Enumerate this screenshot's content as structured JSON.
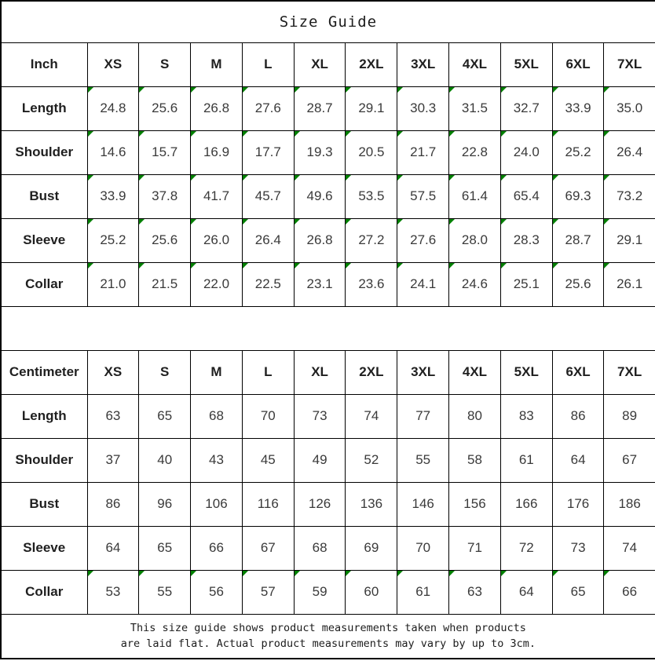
{
  "title": "Size Guide",
  "colors": {
    "flag_green": "#008000",
    "grid_line": "#000000"
  },
  "icons": {
    "cell_corner_flag": "green-triangle-top-left"
  },
  "tables": [
    {
      "unit": "Inch",
      "sizes": [
        "XS",
        "S",
        "M",
        "L",
        "XL",
        "2XL",
        "3XL",
        "4XL",
        "5XL",
        "6XL",
        "7XL"
      ],
      "rows": [
        {
          "label": "Length",
          "marks": true,
          "values": [
            "24.8",
            "25.6",
            "26.8",
            "27.6",
            "28.7",
            "29.1",
            "30.3",
            "31.5",
            "32.7",
            "33.9",
            "35.0"
          ]
        },
        {
          "label": "Shoulder",
          "marks": true,
          "values": [
            "14.6",
            "15.7",
            "16.9",
            "17.7",
            "19.3",
            "20.5",
            "21.7",
            "22.8",
            "24.0",
            "25.2",
            "26.4"
          ]
        },
        {
          "label": "Bust",
          "marks": true,
          "values": [
            "33.9",
            "37.8",
            "41.7",
            "45.7",
            "49.6",
            "53.5",
            "57.5",
            "61.4",
            "65.4",
            "69.3",
            "73.2"
          ]
        },
        {
          "label": "Sleeve",
          "marks": true,
          "values": [
            "25.2",
            "25.6",
            "26.0",
            "26.4",
            "26.8",
            "27.2",
            "27.6",
            "28.0",
            "28.3",
            "28.7",
            "29.1"
          ]
        },
        {
          "label": "Collar",
          "marks": true,
          "values": [
            "21.0",
            "21.5",
            "22.0",
            "22.5",
            "23.1",
            "23.6",
            "24.1",
            "24.6",
            "25.1",
            "25.6",
            "26.1"
          ]
        }
      ]
    },
    {
      "unit": "Centimeter",
      "sizes": [
        "XS",
        "S",
        "M",
        "L",
        "XL",
        "2XL",
        "3XL",
        "4XL",
        "5XL",
        "6XL",
        "7XL"
      ],
      "rows": [
        {
          "label": "Length",
          "marks": false,
          "values": [
            "63",
            "65",
            "68",
            "70",
            "73",
            "74",
            "77",
            "80",
            "83",
            "86",
            "89"
          ]
        },
        {
          "label": "Shoulder",
          "marks": false,
          "values": [
            "37",
            "40",
            "43",
            "45",
            "49",
            "52",
            "55",
            "58",
            "61",
            "64",
            "67"
          ]
        },
        {
          "label": "Bust",
          "marks": false,
          "values": [
            "86",
            "96",
            "106",
            "116",
            "126",
            "136",
            "146",
            "156",
            "166",
            "176",
            "186"
          ]
        },
        {
          "label": "Sleeve",
          "marks": false,
          "values": [
            "64",
            "65",
            "66",
            "67",
            "68",
            "69",
            "70",
            "71",
            "72",
            "73",
            "74"
          ]
        },
        {
          "label": "Collar",
          "marks": true,
          "values": [
            "53",
            "55",
            "56",
            "57",
            "59",
            "60",
            "61",
            "63",
            "64",
            "65",
            "66"
          ]
        }
      ]
    }
  ],
  "footer": {
    "line1": "This size guide shows product measurements taken when products",
    "line2": "are laid flat. Actual product measurements may vary by up to 3cm."
  }
}
